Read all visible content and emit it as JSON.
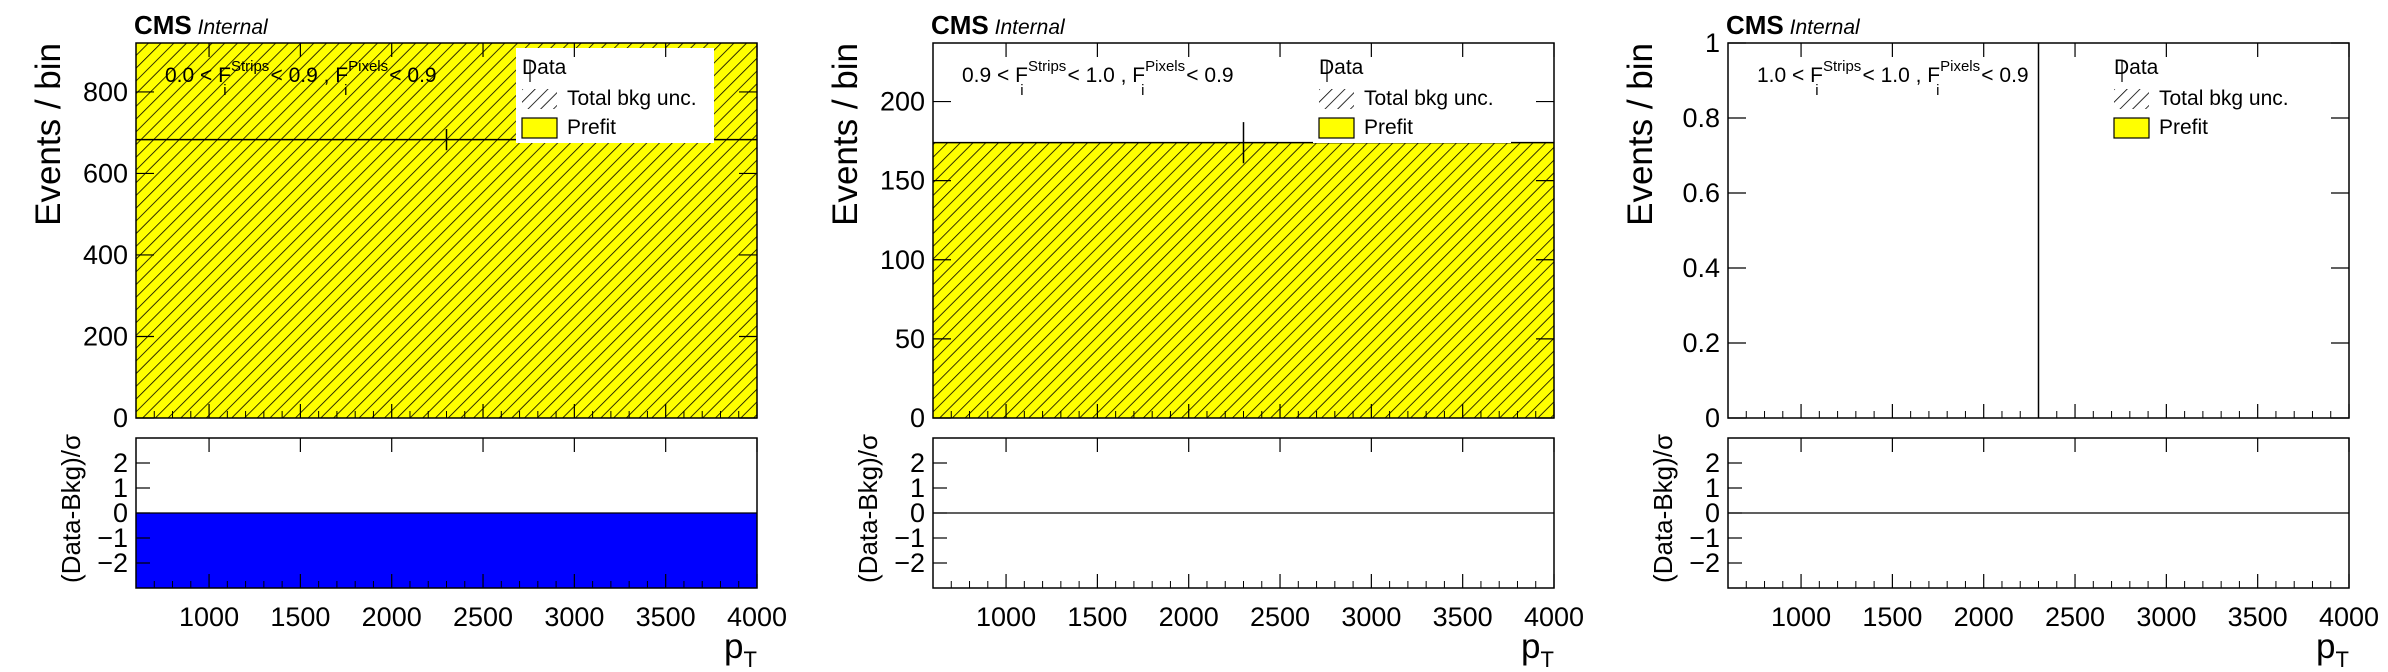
{
  "experiment_label": "CMS",
  "status_label": "Internal",
  "legend": {
    "data_label": "Data",
    "unc_label": "Total bkg unc.",
    "prefit_label": "Prefit"
  },
  "colors": {
    "prefit_fill": "#ffff00",
    "hatch": "#000000",
    "pull_fill": "#0000ff",
    "frame": "#000000"
  },
  "chart_data": [
    {
      "type": "bar",
      "panel": "left",
      "cut_label": {
        "lo": "0.0",
        "hi": "0.9",
        "pix_hi": "0.9",
        "var_strips": "F",
        "sub_strips": "i",
        "sup_strips": "Strips",
        "var_pixels": "F",
        "sub_pixels": "i",
        "sup_pixels": "Pixels",
        "lt": "<",
        "sep": ","
      },
      "xlabel": "p",
      "xlabel_sub": "T",
      "ylabel": "Events / bin",
      "ratio_ylabel": "(Data-Bkg)/σ",
      "xlim": [
        600,
        4000
      ],
      "ylim": [
        0,
        920
      ],
      "xticks": [
        "1000",
        "1500",
        "2000",
        "2500",
        "3000",
        "3500",
        "4000"
      ],
      "yticks": [
        "0",
        "200",
        "400",
        "600",
        "800"
      ],
      "ytick_values": [
        0,
        200,
        400,
        600,
        800
      ],
      "bin_edges": [
        600,
        4000
      ],
      "prefit": [
        920
      ],
      "unc_band": [
        [
          0,
          920
        ]
      ],
      "data_x": 2300,
      "data_y": 683,
      "data_yerr": 26,
      "ratio_ylim": [
        -3,
        3
      ],
      "ratio_yticks": [
        "2",
        "1",
        "0",
        "−1",
        "−2"
      ],
      "ratio_ytick_values": [
        2,
        1,
        0,
        -1,
        -2
      ],
      "pull": [
        -3
      ]
    },
    {
      "type": "bar",
      "panel": "middle",
      "cut_label": {
        "lo": "0.9",
        "hi": "1.0",
        "pix_hi": "0.9",
        "var_strips": "F",
        "sub_strips": "i",
        "sup_strips": "Strips",
        "var_pixels": "F",
        "sub_pixels": "i",
        "sup_pixels": "Pixels",
        "lt": "<",
        "sep": ","
      },
      "xlabel": "p",
      "xlabel_sub": "T",
      "ylabel": "Events / bin",
      "ratio_ylabel": "(Data-Bkg)/σ",
      "xlim": [
        600,
        4000
      ],
      "ylim": [
        0,
        237
      ],
      "xticks": [
        "1000",
        "1500",
        "2000",
        "2500",
        "3000",
        "3500",
        "4000"
      ],
      "yticks": [
        "0",
        "50",
        "100",
        "150",
        "200"
      ],
      "ytick_values": [
        0,
        50,
        100,
        150,
        200
      ],
      "bin_edges": [
        600,
        4000
      ],
      "prefit": [
        174
      ],
      "unc_band": [
        [
          0,
          174
        ]
      ],
      "data_x": 2300,
      "data_y": 174,
      "data_yerr": 13,
      "ratio_ylim": [
        -3,
        3
      ],
      "ratio_yticks": [
        "2",
        "1",
        "0",
        "−1",
        "−2"
      ],
      "ratio_ytick_values": [
        2,
        1,
        0,
        -1,
        -2
      ],
      "pull": [
        0
      ]
    },
    {
      "type": "bar",
      "panel": "right",
      "cut_label": {
        "lo": "1.0",
        "hi": "1.0",
        "pix_hi": "0.9",
        "var_strips": "F",
        "sub_strips": "i",
        "sup_strips": "Strips",
        "var_pixels": "F",
        "sub_pixels": "i",
        "sup_pixels": "Pixels",
        "lt": "<",
        "sep": ","
      },
      "xlabel": "p",
      "xlabel_sub": "T",
      "ylabel": "Events / bin",
      "ratio_ylabel": "(Data-Bkg)/σ",
      "xlim": [
        600,
        4000
      ],
      "ylim": [
        0,
        1
      ],
      "xticks": [
        "1000",
        "1500",
        "2000",
        "2500",
        "3000",
        "3500",
        "4000"
      ],
      "yticks": [
        "0",
        "0.2",
        "0.4",
        "0.6",
        "0.8",
        "1"
      ],
      "ytick_values": [
        0,
        0.2,
        0.4,
        0.6,
        0.8,
        1
      ],
      "bin_edges": [
        600,
        4000
      ],
      "prefit": [
        0
      ],
      "unc_band": [
        [
          0,
          0
        ]
      ],
      "data_x": 2300,
      "data_y": 0,
      "data_yerr": 1,
      "ratio_ylim": [
        -3,
        3
      ],
      "ratio_yticks": [
        "2",
        "1",
        "0",
        "−1",
        "−2"
      ],
      "ratio_ytick_values": [
        2,
        1,
        0,
        -1,
        -2
      ],
      "pull": [
        0
      ]
    }
  ]
}
